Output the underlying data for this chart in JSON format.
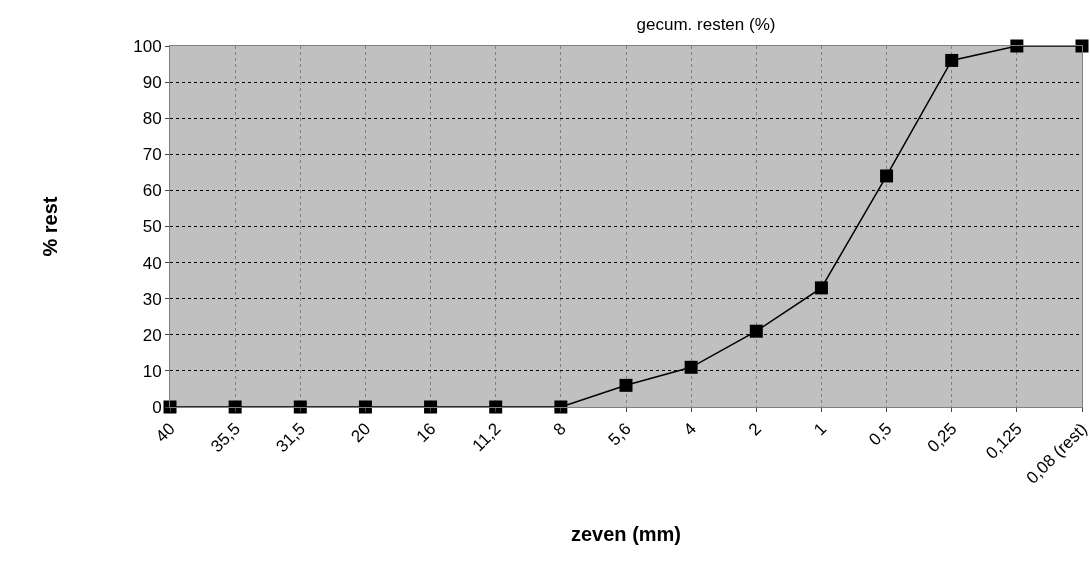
{
  "chart_data": {
    "type": "line",
    "title": "gecum. resten (%)",
    "xlabel": "zeven (mm)",
    "ylabel": "% rest",
    "categories": [
      "40",
      "35,5",
      "31,5",
      "20",
      "16",
      "11,2",
      "8",
      "5,6",
      "4",
      "2",
      "1",
      "0,5",
      "0,25",
      "0,125",
      "0,08 (rest)"
    ],
    "series": [
      {
        "color": "#000000",
        "values": [
          0,
          0,
          0,
          0,
          0,
          0,
          0,
          6,
          11,
          21,
          33,
          64,
          96,
          100,
          100
        ]
      }
    ],
    "ylim": [
      0,
      100
    ],
    "yticks": [
      0,
      10,
      20,
      30,
      40,
      50,
      60,
      70,
      80,
      90,
      100
    ],
    "grid": true,
    "legend": false,
    "marker": "square",
    "line_style": "solid"
  }
}
